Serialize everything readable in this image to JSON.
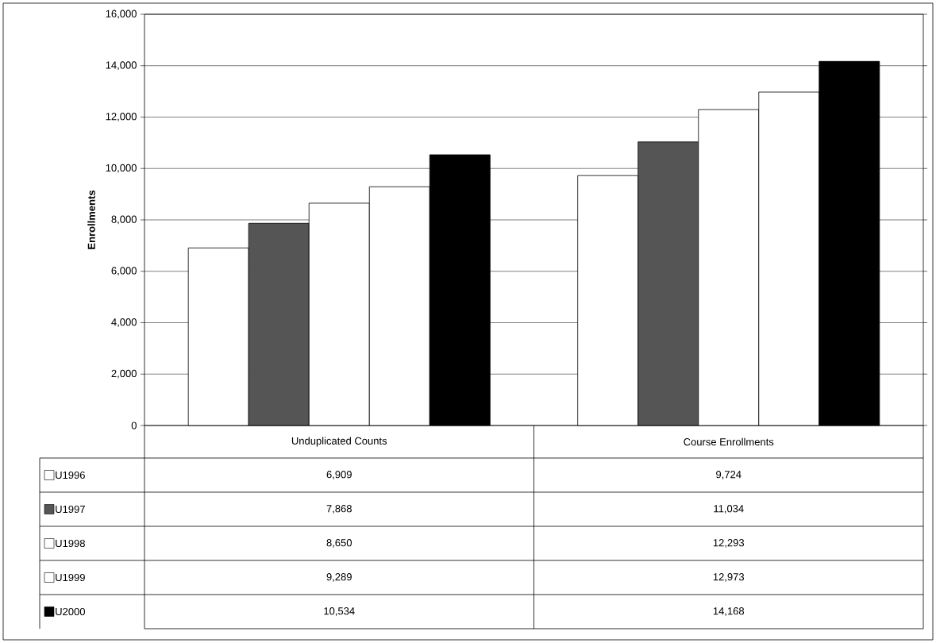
{
  "chart_data": {
    "type": "bar",
    "ylabel": "Enrollments",
    "categories": [
      "Unduplicated Counts",
      "Course Enrollments"
    ],
    "series": [
      {
        "name": "U1996",
        "color": "#ffffff",
        "values": [
          6909,
          9724
        ],
        "value_labels": [
          "6,909",
          "9,724"
        ]
      },
      {
        "name": "U1997",
        "color": "#555555",
        "values": [
          7868,
          11034
        ],
        "value_labels": [
          "7,868",
          "11,034"
        ]
      },
      {
        "name": "U1998",
        "color": "#ffffff",
        "values": [
          8650,
          12293
        ],
        "value_labels": [
          "8,650",
          "12,293"
        ]
      },
      {
        "name": "U1999",
        "color": "#ffffff",
        "values": [
          9289,
          12973
        ],
        "value_labels": [
          "9,289",
          "12,973"
        ]
      },
      {
        "name": "U2000",
        "color": "#000000",
        "values": [
          10534,
          14168
        ],
        "value_labels": [
          "10,534",
          "14,168"
        ]
      }
    ],
    "ylim": [
      0,
      16000
    ],
    "yticks": [
      {
        "value": 0,
        "label": "0"
      },
      {
        "value": 2000,
        "label": "2,000"
      },
      {
        "value": 4000,
        "label": "4,000"
      },
      {
        "value": 6000,
        "label": "6,000"
      },
      {
        "value": 8000,
        "label": "8,000"
      },
      {
        "value": 10000,
        "label": "10,000"
      },
      {
        "value": 12000,
        "label": "12,000"
      },
      {
        "value": 14000,
        "label": "14,000"
      },
      {
        "value": 16000,
        "label": "16,000"
      }
    ],
    "grid": "y",
    "legend": "bottom"
  }
}
